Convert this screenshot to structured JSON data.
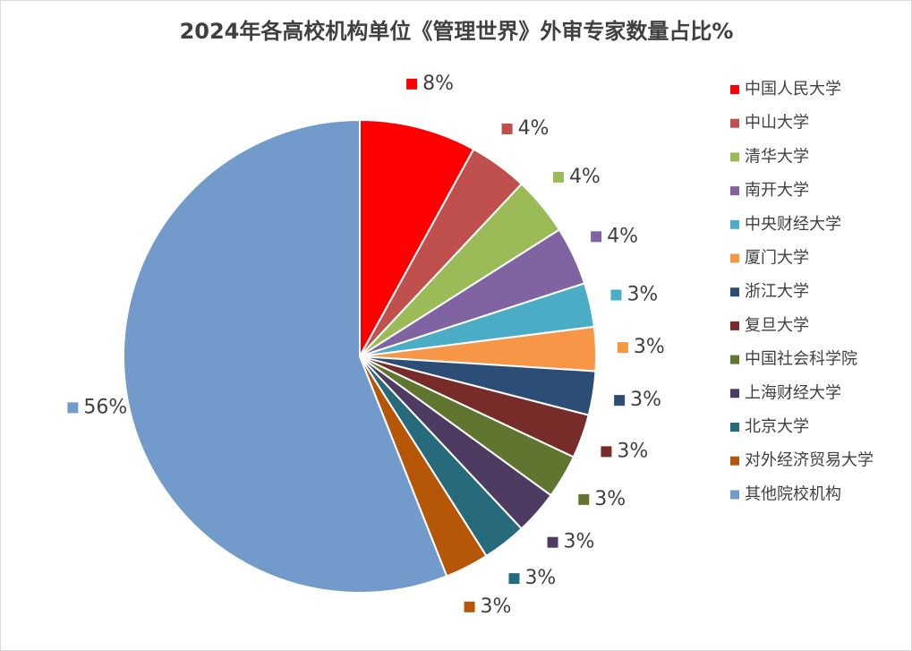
{
  "chart_data": {
    "type": "pie",
    "title": "2024年各高校机构单位《管理世界》外审专家数量占比%",
    "categories": [
      "中国人民大学",
      "中山大学",
      "清华大学",
      "南开大学",
      "中央财经大学",
      "厦门大学",
      "浙江大学",
      "复旦大学",
      "中国社会科学院",
      "上海财经大学",
      "北京大学",
      "对外经济贸易大学",
      "其他院校机构"
    ],
    "values": [
      8,
      4,
      4,
      4,
      3,
      3,
      3,
      3,
      3,
      3,
      3,
      3,
      56
    ],
    "value_labels": [
      "8%",
      "4%",
      "4%",
      "4%",
      "3%",
      "3%",
      "3%",
      "3%",
      "3%",
      "3%",
      "3%",
      "3%",
      "56%"
    ],
    "colors": [
      "#ff0000",
      "#c0504d",
      "#9bbb59",
      "#8064a2",
      "#4bacc6",
      "#f79646",
      "#2c4d75",
      "#772c2a",
      "#5f7530",
      "#4d3b62",
      "#276a7c",
      "#b65708",
      "#729aca"
    ],
    "legend": "right"
  }
}
